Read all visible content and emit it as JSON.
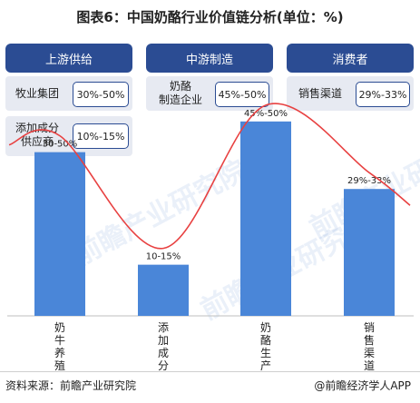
{
  "title": "图表6：中国奶酪行业价值链分析(单位：%)",
  "stages": [
    {
      "label": "上游供给"
    },
    {
      "label": "中游制造"
    },
    {
      "label": "消费者"
    }
  ],
  "segment_boxes": [
    {
      "name": "牧业集团",
      "range": "30%-50%"
    },
    {
      "name": "添加成分\n供应商",
      "range": "10%-15%"
    },
    {
      "name": "奶酪\n制造企业",
      "range": "45%-50%"
    },
    {
      "name": "销售渠道",
      "range": "29%-33%"
    }
  ],
  "footer": {
    "source": "资料来源：前瞻产业研究院",
    "brand": "@前瞻经济学人APP"
  },
  "watermark": "前瞻产业研究院",
  "colors": {
    "header": "#2b4c93",
    "bar": "#4a86d8",
    "curve": "#e84141"
  },
  "chart_data": {
    "type": "bar",
    "categories": [
      "奶牛养殖",
      "添加成分",
      "奶酪生产",
      "销售渠道"
    ],
    "category_labels_vertical": [
      "奶\n牛\n养\n殖",
      "添\n加\n成\n分",
      "奶\n酪\n生\n产",
      "销\n售\n渠\n道"
    ],
    "values": [
      40,
      12.5,
      47.5,
      31
    ],
    "data_labels": [
      "30-50%",
      "10-15%",
      "45%-50%",
      "29%-33%"
    ],
    "ylim": [
      0,
      55
    ],
    "grid": false,
    "overlay": "smooth red curve through bar tops"
  }
}
